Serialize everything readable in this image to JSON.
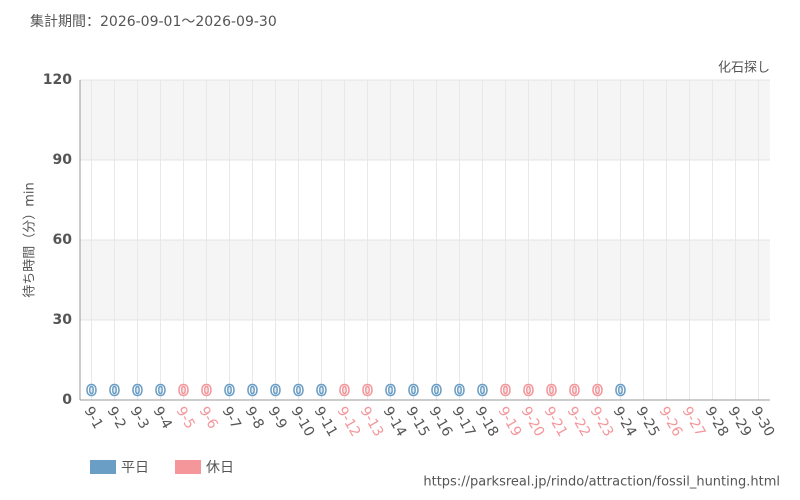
{
  "chart_data": {
    "type": "bar",
    "title": "集計期間：2026-09-01～2026-09-30",
    "subtitle": "化石探し",
    "y_label": "待ち時間（分）min",
    "source": "https://parksreal.jp/rindo/attraction/fossil_hunting.html",
    "categories": [
      "9-1",
      "9-2",
      "9-3",
      "9-4",
      "9-5",
      "9-6",
      "9-7",
      "9-8",
      "9-9",
      "9-10",
      "9-11",
      "9-12",
      "9-13",
      "9-14",
      "9-15",
      "9-16",
      "9-17",
      "9-18",
      "9-19",
      "9-20",
      "9-21",
      "9-22",
      "9-23",
      "9-24",
      "9-25",
      "9-26",
      "9-27",
      "9-28",
      "9-29",
      "9-30"
    ],
    "label_colors": [
      "#555",
      "#555",
      "#555",
      "#555",
      "#f4969a",
      "#f4969a",
      "#555",
      "#555",
      "#555",
      "#555",
      "#555",
      "#f4969a",
      "#f4969a",
      "#555",
      "#555",
      "#555",
      "#555",
      "#555",
      "#f4969a",
      "#f4969a",
      "#f4969a",
      "#f4969a",
      "#f4969a",
      "#555",
      "#555",
      "#f4969a",
      "#f4969a",
      "#555",
      "#555",
      "#555"
    ],
    "series": [
      {
        "name": "平日",
        "color": "#6a9ec5",
        "values": [
          0,
          0,
          0,
          0,
          null,
          null,
          0,
          0,
          0,
          0,
          0,
          null,
          null,
          0,
          0,
          0,
          0,
          0,
          null,
          null,
          null,
          null,
          null,
          0,
          null,
          null,
          null,
          null,
          null,
          null
        ]
      },
      {
        "name": "休日",
        "color": "#f4969a",
        "values": [
          null,
          null,
          null,
          null,
          0,
          0,
          null,
          null,
          null,
          null,
          null,
          0,
          0,
          null,
          null,
          null,
          null,
          null,
          0,
          0,
          0,
          0,
          0,
          null,
          null,
          null,
          null,
          null,
          null,
          null
        ]
      }
    ],
    "ylim": [
      0,
      120
    ],
    "yticks": [
      0,
      30,
      60,
      90,
      120
    ],
    "grid": true
  }
}
